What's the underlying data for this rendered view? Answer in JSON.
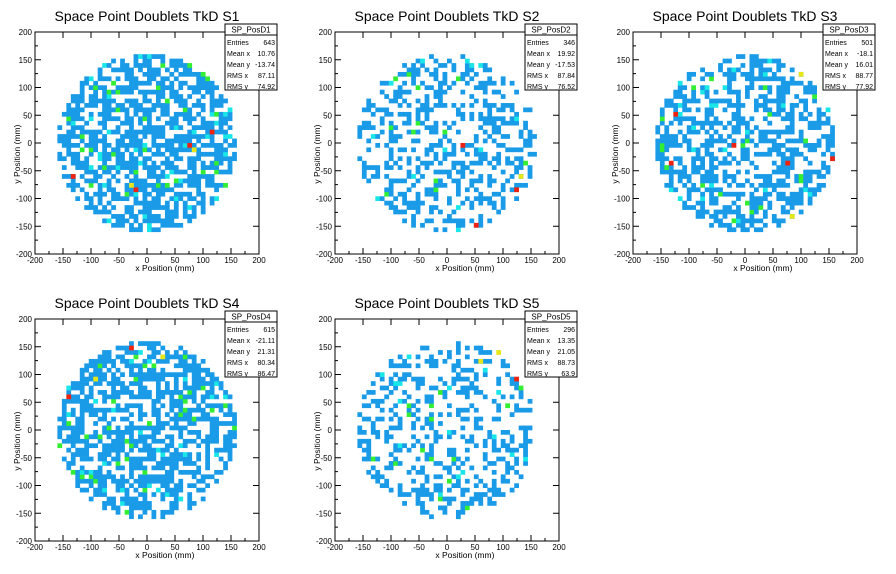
{
  "canvas": {
    "background": "#ffffff"
  },
  "axes_common": {
    "xlabel": "x Position (mm)",
    "ylabel": "y Position (mm)",
    "xlim": [
      -200,
      200
    ],
    "ylim": [
      -200,
      200
    ],
    "x_ticks": [
      -200,
      -150,
      -100,
      -50,
      0,
      50,
      100,
      150,
      200
    ],
    "y_ticks": [
      -200,
      -150,
      -100,
      -50,
      0,
      50,
      100,
      150,
      200
    ],
    "detector_radius_mm": 160,
    "bin_size_mm": 8
  },
  "colors": {
    "low": "#1a9be8",
    "low_mid": "#19e6e6",
    "mid": "#33ee33",
    "high_mid": "#e6e619",
    "high": "#ee2211"
  },
  "stats_labels": {
    "entries": "Entries",
    "mean_x": "Mean x",
    "mean_y": "Mean y",
    "rms_x": "RMS x",
    "rms_y": "RMS y"
  },
  "chart_data": [
    {
      "type": "heatmap",
      "title": "Space Point Doublets TkD S1",
      "stats_name": "SP_PosD1",
      "stats": {
        "entries": "643",
        "mean_x": "10.76",
        "mean_y": "-13.74",
        "rms_x": "87.11",
        "rms_y": "74.92"
      },
      "seed": 11,
      "fill_fraction": 0.62,
      "hot_bins": [
        {
          "x": -20,
          "y": -85,
          "level": 4
        },
        {
          "x": 72,
          "y": -8,
          "level": 4
        },
        {
          "x": 118,
          "y": 18,
          "level": 4
        },
        {
          "x": -130,
          "y": -62,
          "level": 4
        },
        {
          "x": -30,
          "y": -80,
          "level": 3
        },
        {
          "x": 80,
          "y": -10,
          "level": 3
        }
      ]
    },
    {
      "type": "heatmap",
      "title": "Space Point Doublets TkD S2",
      "stats_name": "SP_PosD2",
      "stats": {
        "entries": "346",
        "mean_x": "19.92",
        "mean_y": "-17.53",
        "rms_x": "87.84",
        "rms_y": "76.52"
      },
      "seed": 23,
      "fill_fraction": 0.38,
      "hot_bins": [
        {
          "x": 25,
          "y": -5,
          "level": 4
        },
        {
          "x": 48,
          "y": -148,
          "level": 4
        },
        {
          "x": 125,
          "y": -88,
          "level": 4
        },
        {
          "x": 130,
          "y": -60,
          "level": 3
        }
      ]
    },
    {
      "type": "heatmap",
      "title": "Space Point Doublets TkD S3",
      "stats_name": "SP_PosD3",
      "stats": {
        "entries": "501",
        "mean_x": "-18.1",
        "mean_y": "16.01",
        "rms_x": "88.77",
        "rms_y": "77.92"
      },
      "seed": 37,
      "fill_fraction": 0.5,
      "hot_bins": [
        {
          "x": -125,
          "y": 50,
          "level": 4
        },
        {
          "x": -20,
          "y": -5,
          "level": 4
        },
        {
          "x": 155,
          "y": -28,
          "level": 4
        },
        {
          "x": 72,
          "y": -35,
          "level": 4
        },
        {
          "x": -130,
          "y": -40,
          "level": 4
        },
        {
          "x": 100,
          "y": 120,
          "level": 3
        },
        {
          "x": 82,
          "y": -130,
          "level": 3
        }
      ]
    },
    {
      "type": "heatmap",
      "title": "Space Point Doublets TkD S4",
      "stats_name": "SP_PosD4",
      "stats": {
        "entries": "615",
        "mean_x": "-21.11",
        "mean_y": "21.31",
        "rms_x": "80.34",
        "rms_y": "86.47"
      },
      "seed": 41,
      "fill_fraction": 0.6,
      "hot_bins": [
        {
          "x": -32,
          "y": 148,
          "level": 4
        },
        {
          "x": -140,
          "y": 62,
          "level": 4
        },
        {
          "x": -95,
          "y": 92,
          "level": 3
        },
        {
          "x": 30,
          "y": 130,
          "level": 3
        }
      ]
    },
    {
      "type": "heatmap",
      "title": "Space Point Doublets TkD S5",
      "stats_name": "SP_PosD5",
      "stats": {
        "entries": "296",
        "mean_x": "13.35",
        "mean_y": "21.05",
        "rms_x": "88.73",
        "rms_y": "63.9"
      },
      "seed": 53,
      "fill_fraction": 0.33,
      "hot_bins": [
        {
          "x": 120,
          "y": 95,
          "level": 4
        },
        {
          "x": 88,
          "y": 140,
          "level": 3
        },
        {
          "x": 60,
          "y": 120,
          "level": 3
        }
      ]
    }
  ]
}
